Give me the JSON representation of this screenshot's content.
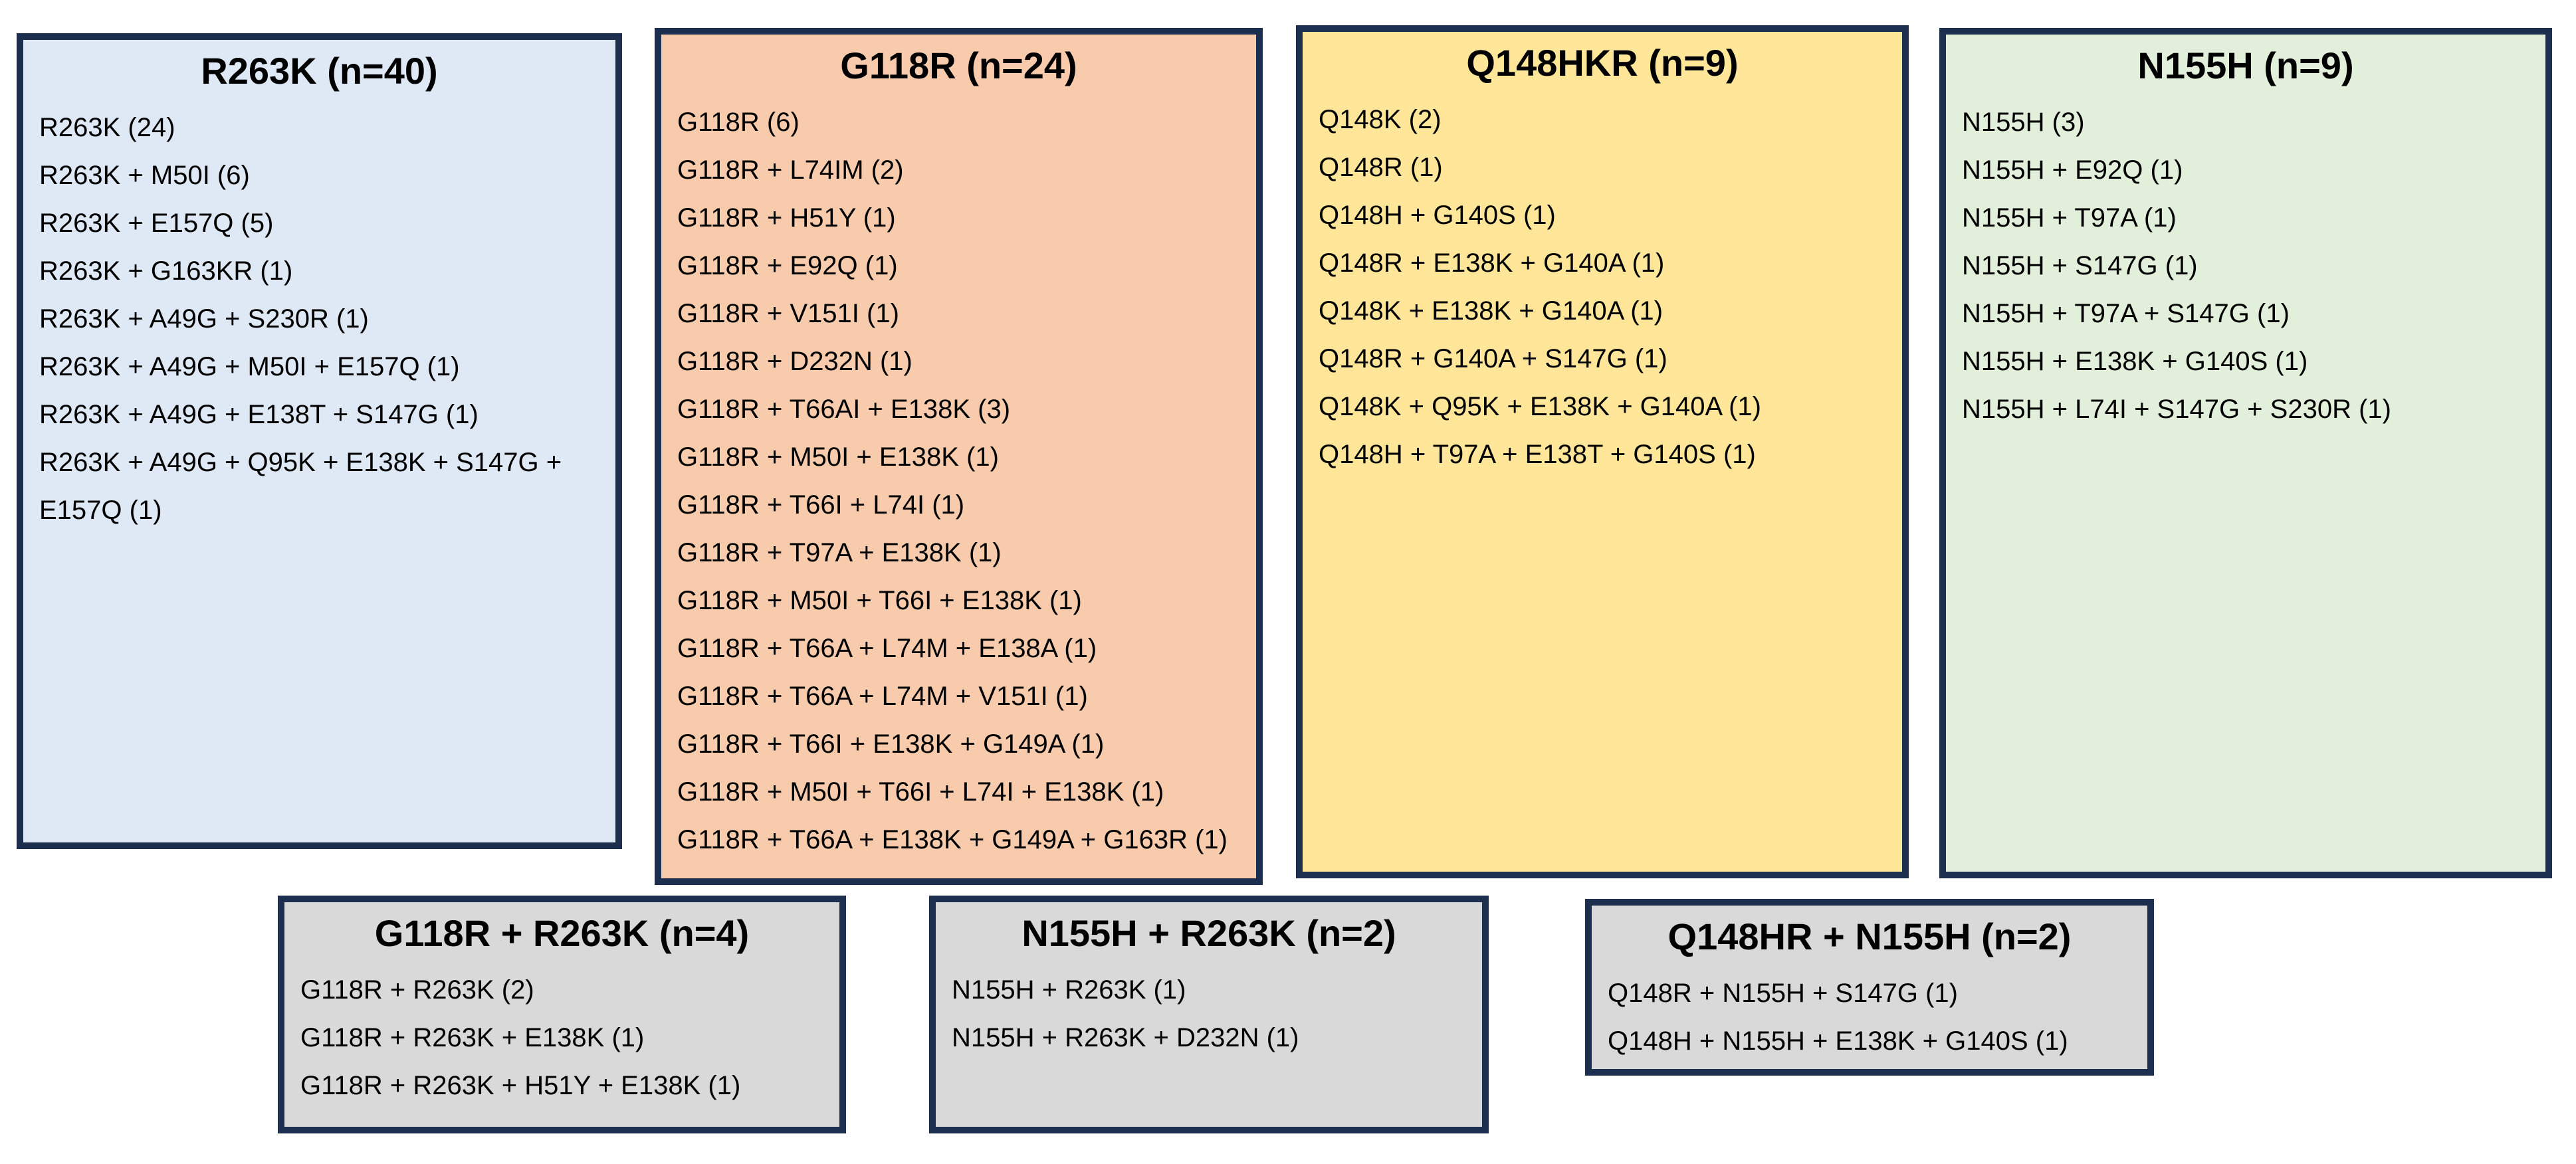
{
  "border_color": "#1d2f4f",
  "boxes": [
    {
      "key": "r263k",
      "title": "R263K (n=40)",
      "fill": "#dee9f5",
      "items": [
        "R263K (24)",
        "R263K + M50I (6)",
        "R263K + E157Q (5)",
        "R263K + G163KR (1)",
        "R263K + A49G + S230R (1)",
        "R263K + A49G + M50I + E157Q (1)",
        "R263K + A49G + E138T + S147G (1)",
        "R263K + A49G + Q95K + E138K + S147G + E157Q (1)"
      ]
    },
    {
      "key": "g118r",
      "title": "G118R (n=24)",
      "fill": "#f7cbac",
      "items": [
        "G118R (6)",
        "G118R + L74IM (2)",
        "G118R + H51Y (1)",
        "G118R + E92Q (1)",
        "G118R + V151I (1)",
        "G118R + D232N (1)",
        "G118R + T66AI + E138K (3)",
        "G118R + M50I + E138K (1)",
        "G118R + T66I + L74I (1)",
        "G118R + T97A + E138K (1)",
        "G118R + M50I + T66I + E138K (1)",
        "G118R + T66A + L74M + E138A (1)",
        "G118R + T66A + L74M + V151I (1)",
        "G118R + T66I + E138K + G149A (1)",
        "G118R + M50I + T66I + L74I + E138K (1)",
        "G118R + T66A + E138K + G149A + G163R (1)"
      ]
    },
    {
      "key": "q148hkr",
      "title": "Q148HKR (n=9)",
      "fill": "#ffe699",
      "items": [
        "Q148K (2)",
        "Q148R (1)",
        "Q148H + G140S (1)",
        "Q148R + E138K + G140A (1)",
        "Q148K + E138K + G140A (1)",
        "Q148R + G140A + S147G (1)",
        "Q148K + Q95K + E138K + G140A (1)",
        "Q148H + T97A + E138T + G140S (1)"
      ]
    },
    {
      "key": "n155h",
      "title": "N155H (n=9)",
      "fill": "#e2efda",
      "items": [
        "N155H (3)",
        "N155H + E92Q (1)",
        "N155H + T97A (1)",
        "N155H + S147G (1)",
        "N155H + T97A + S147G (1)",
        "N155H + E138K + G140S (1)",
        "N155H + L74I + S147G + S230R (1)"
      ]
    },
    {
      "key": "g118r_r263k",
      "title": "G118R + R263K (n=4)",
      "fill": "#d9d9d9",
      "items": [
        "G118R + R263K (2)",
        "G118R + R263K + E138K (1)",
        "G118R + R263K + H51Y + E138K (1)"
      ]
    },
    {
      "key": "n155h_r263k",
      "title": "N155H + R263K (n=2)",
      "fill": "#d9d9d9",
      "items": [
        "N155H + R263K (1)",
        "N155H + R263K + D232N (1)"
      ]
    },
    {
      "key": "q148hr_n155h",
      "title": "Q148HR + N155H (n=2)",
      "fill": "#d9d9d9",
      "items": [
        "Q148R + N155H + S147G (1)",
        "Q148H + N155H + E138K + G140S (1)"
      ]
    }
  ]
}
